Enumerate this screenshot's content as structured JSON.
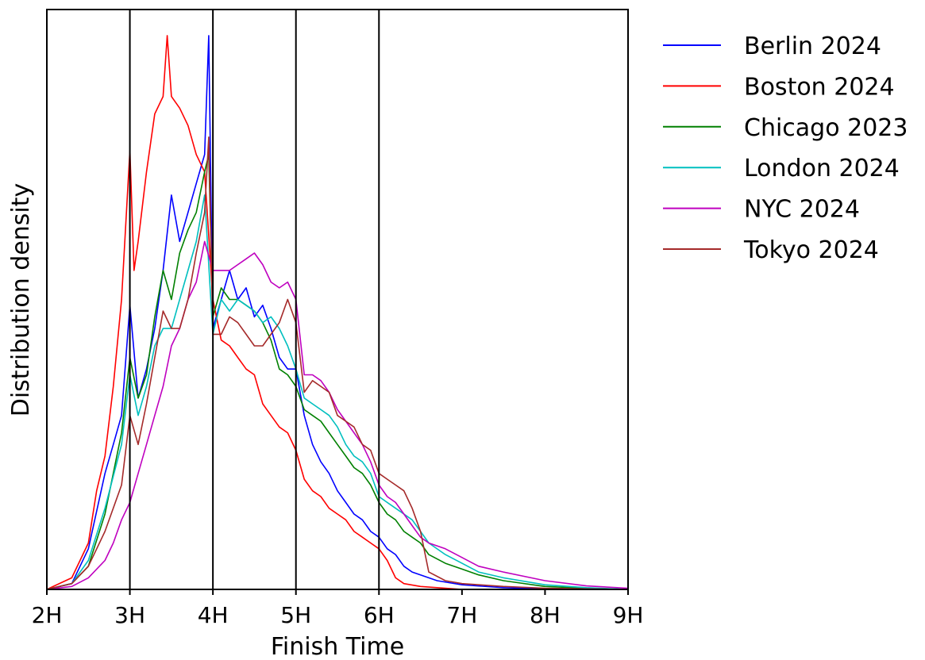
{
  "chart_data": {
    "type": "line",
    "title": "",
    "xlabel": "Finish Time",
    "ylabel": "Distribution density",
    "xlim": [
      2,
      9
    ],
    "ylim": [
      0,
      1
    ],
    "xticks": [
      2,
      3,
      4,
      5,
      6,
      7,
      8,
      9
    ],
    "xtick_labels": [
      "2H",
      "3H",
      "4H",
      "5H",
      "6H",
      "7H",
      "8H",
      "9H"
    ],
    "vlines": [
      3,
      4,
      5,
      6
    ],
    "legend_placement": "outside-right",
    "series": [
      {
        "name": "Berlin 2024",
        "color": "#0000ff",
        "x": [
          2,
          2.3,
          2.5,
          2.7,
          2.8,
          2.9,
          3.0,
          3.1,
          3.2,
          3.3,
          3.4,
          3.5,
          3.6,
          3.7,
          3.8,
          3.9,
          3.95,
          4.0,
          4.1,
          4.2,
          4.3,
          4.4,
          4.5,
          4.6,
          4.7,
          4.8,
          4.9,
          5.0,
          5.1,
          5.2,
          5.3,
          5.4,
          5.5,
          5.6,
          5.7,
          5.8,
          5.9,
          6.0,
          6.1,
          6.2,
          6.3,
          6.4,
          6.5,
          6.7,
          7.0,
          7.5,
          8,
          9
        ],
        "y": [
          0,
          0.01,
          0.07,
          0.2,
          0.25,
          0.3,
          0.49,
          0.33,
          0.38,
          0.45,
          0.55,
          0.68,
          0.6,
          0.65,
          0.7,
          0.75,
          0.955,
          0.45,
          0.5,
          0.55,
          0.5,
          0.52,
          0.47,
          0.49,
          0.45,
          0.4,
          0.38,
          0.38,
          0.3,
          0.25,
          0.22,
          0.2,
          0.17,
          0.15,
          0.13,
          0.12,
          0.1,
          0.09,
          0.07,
          0.06,
          0.04,
          0.03,
          0.025,
          0.015,
          0.008,
          0.003,
          0.001,
          0
        ]
      },
      {
        "name": "Boston 2024",
        "color": "#ff0000",
        "x": [
          2,
          2.3,
          2.5,
          2.6,
          2.7,
          2.8,
          2.9,
          3.0,
          3.05,
          3.1,
          3.2,
          3.3,
          3.4,
          3.45,
          3.5,
          3.6,
          3.7,
          3.8,
          3.9,
          4.0,
          4.1,
          4.2,
          4.3,
          4.4,
          4.5,
          4.6,
          4.7,
          4.8,
          4.9,
          5.0,
          5.1,
          5.2,
          5.3,
          5.4,
          5.5,
          5.6,
          5.7,
          5.8,
          5.9,
          6.0,
          6.1,
          6.2,
          6.3,
          6.5,
          7,
          9
        ],
        "y": [
          0,
          0.02,
          0.08,
          0.17,
          0.23,
          0.35,
          0.5,
          0.757,
          0.55,
          0.6,
          0.72,
          0.82,
          0.85,
          0.955,
          0.85,
          0.83,
          0.8,
          0.75,
          0.72,
          0.5,
          0.43,
          0.42,
          0.4,
          0.38,
          0.37,
          0.32,
          0.3,
          0.28,
          0.27,
          0.24,
          0.19,
          0.17,
          0.16,
          0.14,
          0.13,
          0.12,
          0.1,
          0.09,
          0.08,
          0.07,
          0.05,
          0.02,
          0.01,
          0.005,
          0,
          0
        ]
      },
      {
        "name": "Chicago 2023",
        "color": "#008000",
        "x": [
          2,
          2.3,
          2.5,
          2.7,
          2.9,
          3.0,
          3.1,
          3.2,
          3.3,
          3.4,
          3.5,
          3.6,
          3.7,
          3.8,
          3.9,
          3.95,
          4.0,
          4.1,
          4.2,
          4.3,
          4.4,
          4.5,
          4.6,
          4.7,
          4.8,
          4.9,
          5.0,
          5.1,
          5.2,
          5.3,
          5.4,
          5.5,
          5.6,
          5.7,
          5.8,
          5.9,
          6.0,
          6.1,
          6.2,
          6.3,
          6.4,
          6.5,
          6.6,
          6.8,
          7.0,
          7.2,
          7.5,
          8,
          8.5,
          9
        ],
        "y": [
          0,
          0.01,
          0.04,
          0.13,
          0.27,
          0.4,
          0.33,
          0.37,
          0.47,
          0.55,
          0.5,
          0.58,
          0.62,
          0.65,
          0.72,
          0.75,
          0.47,
          0.52,
          0.5,
          0.5,
          0.49,
          0.48,
          0.46,
          0.43,
          0.38,
          0.37,
          0.35,
          0.31,
          0.3,
          0.29,
          0.27,
          0.25,
          0.23,
          0.21,
          0.2,
          0.18,
          0.15,
          0.13,
          0.12,
          0.1,
          0.09,
          0.08,
          0.06,
          0.045,
          0.035,
          0.025,
          0.015,
          0.005,
          0.002,
          0
        ]
      },
      {
        "name": "London 2024",
        "color": "#00bfbf",
        "x": [
          2,
          2.3,
          2.5,
          2.7,
          2.9,
          3.0,
          3.1,
          3.2,
          3.3,
          3.4,
          3.5,
          3.6,
          3.7,
          3.8,
          3.9,
          4.0,
          4.1,
          4.2,
          4.3,
          4.4,
          4.5,
          4.6,
          4.7,
          4.8,
          4.9,
          5.0,
          5.1,
          5.2,
          5.3,
          5.4,
          5.5,
          5.6,
          5.7,
          5.8,
          5.9,
          6.0,
          6.1,
          6.2,
          6.3,
          6.4,
          6.5,
          6.6,
          6.8,
          7.0,
          7.2,
          7.5,
          8,
          8.5,
          9
        ],
        "y": [
          0,
          0.01,
          0.05,
          0.14,
          0.25,
          0.37,
          0.3,
          0.35,
          0.42,
          0.45,
          0.45,
          0.5,
          0.55,
          0.6,
          0.68,
          0.44,
          0.5,
          0.48,
          0.5,
          0.49,
          0.48,
          0.46,
          0.47,
          0.45,
          0.42,
          0.38,
          0.33,
          0.32,
          0.31,
          0.3,
          0.28,
          0.25,
          0.23,
          0.22,
          0.2,
          0.16,
          0.15,
          0.14,
          0.13,
          0.12,
          0.1,
          0.08,
          0.06,
          0.045,
          0.03,
          0.02,
          0.008,
          0.003,
          0
        ]
      },
      {
        "name": "NYC 2024",
        "color": "#bf00bf",
        "x": [
          2,
          2.3,
          2.5,
          2.7,
          2.8,
          2.9,
          3.0,
          3.1,
          3.2,
          3.3,
          3.4,
          3.5,
          3.6,
          3.7,
          3.8,
          3.9,
          4.0,
          4.1,
          4.2,
          4.3,
          4.4,
          4.5,
          4.6,
          4.7,
          4.8,
          4.9,
          5.0,
          5.1,
          5.2,
          5.3,
          5.4,
          5.5,
          5.6,
          5.7,
          5.8,
          5.9,
          6.0,
          6.1,
          6.2,
          6.3,
          6.4,
          6.5,
          6.6,
          6.8,
          7.0,
          7.2,
          7.5,
          8,
          8.5,
          9
        ],
        "y": [
          0,
          0.005,
          0.02,
          0.05,
          0.08,
          0.12,
          0.15,
          0.2,
          0.25,
          0.3,
          0.35,
          0.42,
          0.45,
          0.5,
          0.53,
          0.6,
          0.55,
          0.55,
          0.55,
          0.56,
          0.57,
          0.58,
          0.56,
          0.53,
          0.52,
          0.53,
          0.5,
          0.37,
          0.37,
          0.36,
          0.34,
          0.31,
          0.29,
          0.27,
          0.25,
          0.22,
          0.18,
          0.16,
          0.15,
          0.13,
          0.11,
          0.09,
          0.08,
          0.07,
          0.055,
          0.04,
          0.03,
          0.015,
          0.006,
          0.002
        ]
      },
      {
        "name": "Tokyo 2024",
        "color": "#a52a2a",
        "x": [
          2,
          2.3,
          2.5,
          2.7,
          2.9,
          3.0,
          3.1,
          3.2,
          3.3,
          3.4,
          3.5,
          3.6,
          3.7,
          3.8,
          3.9,
          3.95,
          4.0,
          4.1,
          4.2,
          4.3,
          4.4,
          4.5,
          4.6,
          4.7,
          4.8,
          4.9,
          5.0,
          5.1,
          5.2,
          5.3,
          5.4,
          5.5,
          5.6,
          5.7,
          5.8,
          5.9,
          6.0,
          6.1,
          6.2,
          6.3,
          6.4,
          6.5,
          6.6,
          6.8,
          7.0,
          7.5,
          8,
          9
        ],
        "y": [
          0,
          0.01,
          0.04,
          0.1,
          0.18,
          0.3,
          0.25,
          0.32,
          0.4,
          0.48,
          0.45,
          0.45,
          0.5,
          0.58,
          0.65,
          0.78,
          0.44,
          0.44,
          0.47,
          0.46,
          0.44,
          0.42,
          0.42,
          0.44,
          0.46,
          0.5,
          0.46,
          0.34,
          0.36,
          0.35,
          0.34,
          0.3,
          0.29,
          0.28,
          0.25,
          0.24,
          0.2,
          0.19,
          0.18,
          0.17,
          0.14,
          0.1,
          0.03,
          0.015,
          0.01,
          0.005,
          0.002,
          0
        ]
      }
    ]
  }
}
